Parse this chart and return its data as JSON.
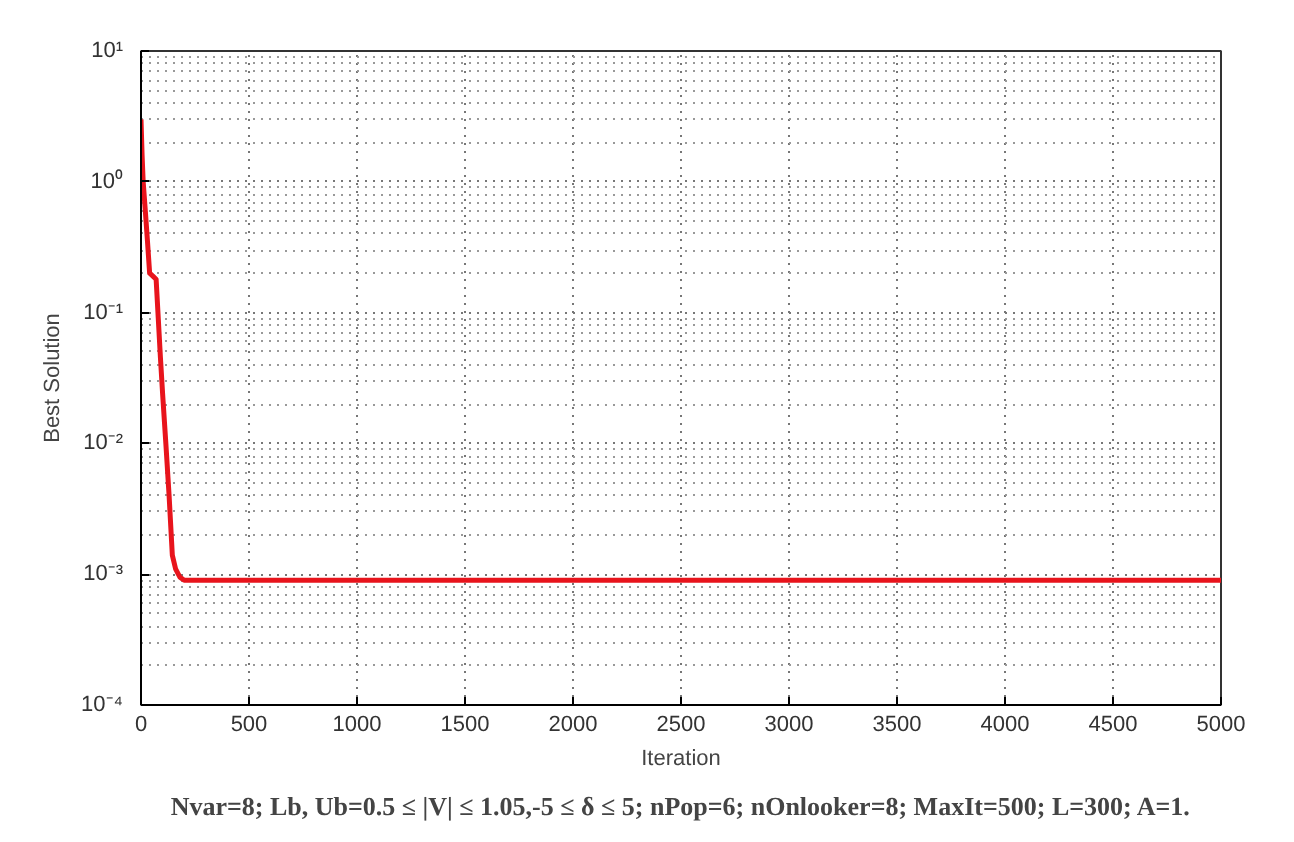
{
  "chart_data": {
    "type": "line",
    "xlabel": "Iteration",
    "ylabel": "Best Solution",
    "log": "y",
    "grid": true,
    "line_style": "solid",
    "marker": "none",
    "xlim": [
      0,
      5000
    ],
    "xticks": [
      0,
      500,
      1000,
      1500,
      2000,
      2500,
      3000,
      3500,
      4000,
      4500,
      5000
    ],
    "ylim": [
      0.0001,
      10
    ],
    "yticks": [
      {
        "value": 0.0001,
        "label": "10⁻⁴"
      },
      {
        "value": 0.001,
        "label": "10⁻³"
      },
      {
        "value": 0.01,
        "label": "10⁻²"
      },
      {
        "value": 0.1,
        "label": "10⁻¹"
      },
      {
        "value": 1,
        "label": "10⁰"
      },
      {
        "value": 10,
        "label": "10¹"
      }
    ],
    "series": [
      {
        "color": "#e8141c",
        "x": [
          0,
          5,
          10,
          20,
          30,
          40,
          55,
          70,
          80,
          90,
          100,
          115,
          130,
          145,
          160,
          180,
          200,
          210,
          250,
          500,
          1000,
          2000,
          3000,
          4000,
          5000
        ],
        "values": [
          3,
          1.6,
          1.0,
          0.6,
          0.35,
          0.2,
          0.19,
          0.18,
          0.09,
          0.045,
          0.024,
          0.01,
          0.004,
          0.0014,
          0.0011,
          0.00095,
          0.0009,
          0.0009,
          0.0009,
          0.0009,
          0.0009,
          0.0009,
          0.0009,
          0.0009,
          0.0009
        ]
      }
    ],
    "annotations": [
      "Nvar=8; Lb, Ub=0.5 ≤ |V| ≤ 1.05,-5 ≤ δ ≤ 5; nPop=6; nOnlooker=8; MaxIt=500; L=300; A=1."
    ]
  }
}
